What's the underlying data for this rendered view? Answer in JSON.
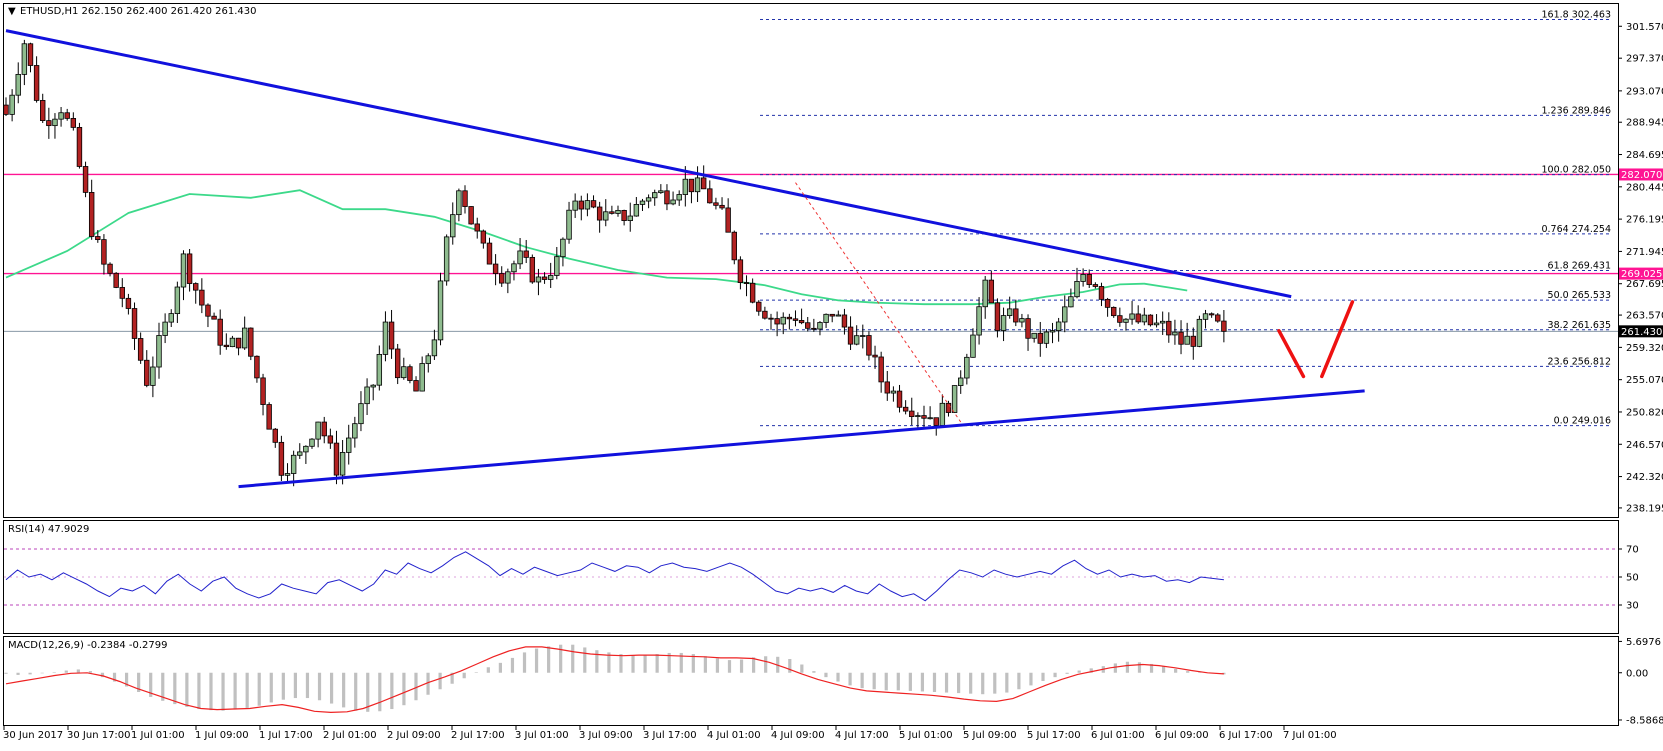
{
  "chart_data": [
    {
      "type": "candlestick",
      "symbol": "ETHUSD,H1",
      "ohlc_header": [
        "262.150",
        "262.400",
        "261.420",
        "261.430"
      ],
      "y_ticks": [
        "301.570",
        "297.370",
        "293.070",
        "288.945",
        "284.695",
        "280.445",
        "276.195",
        "271.945",
        "267.695",
        "263.570",
        "259.320",
        "255.070",
        "250.820",
        "246.570",
        "242.320",
        "238.195"
      ],
      "ylim": [
        237.0,
        304.5
      ],
      "x_tick_labels": [
        "30 Jun 2017",
        "30 Jun 17:00",
        "1 Jul 01:00",
        "1 Jul 09:00",
        "1 Jul 17:00",
        "2 Jul 01:00",
        "2 Jul 09:00",
        "2 Jul 17:00",
        "3 Jul 01:00",
        "3 Jul 09:00",
        "3 Jul 17:00",
        "4 Jul 01:00",
        "4 Jul 09:00",
        "4 Jul 17:00",
        "5 Jul 01:00",
        "5 Jul 09:00",
        "5 Jul 17:00",
        "6 Jul 01:00",
        "6 Jul 09:00",
        "6 Jul 17:00",
        "7 Jul 01:00"
      ],
      "candles_count": 200,
      "close_path": [
        [
          0,
          290.0
        ],
        [
          3,
          299.5
        ],
        [
          6,
          289.0
        ],
        [
          9,
          291.0
        ],
        [
          11,
          287.0
        ],
        [
          14,
          275.0
        ],
        [
          16,
          270.0
        ],
        [
          19,
          266.0
        ],
        [
          23,
          255.0
        ],
        [
          26,
          262.0
        ],
        [
          29,
          271.0
        ],
        [
          32,
          265.0
        ],
        [
          36,
          259.0
        ],
        [
          39,
          261.0
        ],
        [
          42,
          252.5
        ],
        [
          45,
          243.5
        ],
        [
          48,
          245.0
        ],
        [
          51,
          250.0
        ],
        [
          54,
          243.5
        ],
        [
          57,
          249.5
        ],
        [
          60,
          254.5
        ],
        [
          62,
          262.0
        ],
        [
          64,
          256.5
        ],
        [
          67,
          253.5
        ],
        [
          70,
          261.0
        ],
        [
          72,
          273.0
        ],
        [
          74,
          281.0
        ],
        [
          76,
          276.0
        ],
        [
          78,
          272.0
        ],
        [
          81,
          269.0
        ],
        [
          84,
          271.0
        ],
        [
          87,
          268.0
        ],
        [
          90,
          270.5
        ],
        [
          93,
          279.0
        ],
        [
          96,
          277.5
        ],
        [
          99,
          276.0
        ],
        [
          102,
          277.0
        ],
        [
          105,
          279.5
        ],
        [
          108,
          279.5
        ],
        [
          111,
          281.0
        ],
        [
          114,
          280.0
        ],
        [
          117,
          276.5
        ],
        [
          120,
          269.0
        ],
        [
          123,
          265.0
        ],
        [
          126,
          262.5
        ],
        [
          129,
          263.5
        ],
        [
          132,
          261.0
        ],
        [
          135,
          264.0
        ],
        [
          138,
          261.0
        ],
        [
          141,
          259.0
        ],
        [
          143,
          255.0
        ],
        [
          146,
          252.5
        ],
        [
          149,
          251.0
        ],
        [
          152,
          250.0
        ],
        [
          155,
          253.0
        ],
        [
          158,
          262.0
        ],
        [
          160,
          267.0
        ],
        [
          162,
          262.5
        ],
        [
          165,
          263.5
        ],
        [
          168,
          260.0
        ],
        [
          171,
          261.0
        ],
        [
          174,
          265.5
        ],
        [
          176,
          269.0
        ],
        [
          178,
          268.0
        ],
        [
          180,
          265.0
        ],
        [
          183,
          263.0
        ],
        [
          186,
          262.5
        ],
        [
          189,
          262.0
        ],
        [
          192,
          260.0
        ],
        [
          194,
          260.5
        ],
        [
          196,
          263.0
        ],
        [
          198,
          262.0
        ],
        [
          199,
          261.43
        ]
      ],
      "series": [
        {
          "name": "MA",
          "points": [
            [
              0,
              268.5
            ],
            [
              10,
              272.0
            ],
            [
              20,
              277.0
            ],
            [
              30,
              279.5
            ],
            [
              40,
              279.0
            ],
            [
              48,
              280.0
            ],
            [
              55,
              277.5
            ],
            [
              62,
              277.5
            ],
            [
              70,
              276.5
            ],
            [
              78,
              274.5
            ],
            [
              85,
              272.5
            ],
            [
              92,
              271.0
            ],
            [
              100,
              269.5
            ],
            [
              108,
              268.5
            ],
            [
              116,
              268.3
            ],
            [
              124,
              267.5
            ],
            [
              130,
              266.3
            ],
            [
              136,
              265.5
            ],
            [
              142,
              265.2
            ],
            [
              150,
              265.0
            ],
            [
              158,
              265.0
            ],
            [
              164,
              265.2
            ],
            [
              170,
              266.0
            ],
            [
              176,
              266.6
            ],
            [
              182,
              267.6
            ],
            [
              186,
              267.7
            ],
            [
              190,
              267.2
            ],
            [
              193,
              266.8
            ]
          ]
        }
      ],
      "horizontal_levels": [
        {
          "value": 282.07,
          "label": "282.070",
          "color": "#ff1493"
        },
        {
          "value": 269.025,
          "label": "269.025",
          "color": "#ff1493"
        }
      ],
      "current_price": {
        "value": 261.43,
        "label": "261.430"
      },
      "fib_levels": [
        {
          "value": 302.463,
          "ratio": "161.8",
          "price": "302.463"
        },
        {
          "value": 289.846,
          "ratio": "1.236",
          "price": "289.846"
        },
        {
          "value": 282.05,
          "ratio": "100.0",
          "price": "282.050"
        },
        {
          "value": 274.254,
          "ratio": "0.764",
          "price": "274.254"
        },
        {
          "value": 269.431,
          "ratio": "61.8",
          "price": "269.431"
        },
        {
          "value": 265.533,
          "ratio": "50.0",
          "price": "265.533"
        },
        {
          "value": 261.635,
          "ratio": "38.2",
          "price": "261.635"
        },
        {
          "value": 256.812,
          "ratio": "23.6",
          "price": "256.812"
        },
        {
          "value": 249.016,
          "ratio": "0.0",
          "price": "249.016"
        }
      ],
      "trendlines": [
        {
          "from": [
            0,
            301.0
          ],
          "to": [
            210,
            266.0
          ],
          "color": "#1111dd"
        },
        {
          "from": [
            38,
            241.0
          ],
          "to": [
            222,
            253.6
          ],
          "color": "#1111dd"
        }
      ],
      "annotations": [
        {
          "type": "dashed-line",
          "from": [
            129,
            281.0
          ],
          "to": [
            156,
            249.5
          ],
          "color": "#ee3333"
        },
        {
          "type": "stroke",
          "from": [
            208,
            261.5
          ],
          "to": [
            212,
            255.5
          ],
          "color": "#ee1111"
        },
        {
          "type": "stroke",
          "from": [
            215,
            255.5
          ],
          "to": [
            220,
            265.3
          ],
          "color": "#ee1111"
        }
      ]
    },
    {
      "type": "line",
      "title": "RSI(14) 47.9029",
      "ylim": [
        10,
        90
      ],
      "y_ticks": [
        "70",
        "50",
        "30"
      ],
      "levels": [
        70,
        30
      ],
      "values": [
        48,
        55,
        50,
        52,
        48,
        53,
        49,
        45,
        40,
        36,
        42,
        40,
        44,
        38,
        47,
        52,
        45,
        40,
        47,
        50,
        42,
        38,
        35,
        38,
        45,
        42,
        40,
        38,
        46,
        48,
        44,
        40,
        45,
        55,
        52,
        60,
        56,
        53,
        58,
        64,
        68,
        63,
        58,
        51,
        56,
        52,
        57,
        54,
        51,
        53,
        55,
        60,
        57,
        54,
        58,
        57,
        53,
        58,
        60,
        57,
        56,
        54,
        57,
        60,
        57,
        52,
        46,
        40,
        38,
        42,
        40,
        42,
        39,
        44,
        40,
        38,
        45,
        40,
        36,
        38,
        33,
        40,
        48,
        55,
        53,
        50,
        55,
        52,
        50,
        52,
        54,
        52,
        58,
        62,
        56,
        52,
        55,
        50,
        52,
        50,
        51,
        47,
        48,
        46,
        50,
        49,
        48
      ]
    },
    {
      "type": "bar",
      "title": "MACD(12,26,9) -0.2384 -0.2799",
      "ylim": [
        -9.5,
        6.5
      ],
      "y_ticks": [
        "5.6976",
        "0.00",
        "-8.5868"
      ],
      "histogram": [
        -0.2,
        -0.4,
        -0.3,
        -0.1,
        0.1,
        0.4,
        0.6,
        0.3,
        -0.8,
        -1.6,
        -2.5,
        -3.5,
        -4.4,
        -5.1,
        -5.7,
        -6.2,
        -6.6,
        -6.8,
        -6.9,
        -6.7,
        -6.4,
        -6.0,
        -5.4,
        -4.9,
        -4.6,
        -4.6,
        -5.0,
        -5.6,
        -6.3,
        -6.9,
        -7.1,
        -7.0,
        -6.6,
        -5.9,
        -5.0,
        -4.0,
        -3.0,
        -2.0,
        -1.0,
        0.1,
        1.0,
        1.8,
        2.7,
        3.7,
        4.4,
        4.8,
        5.1,
        5.1,
        4.6,
        4.1,
        3.7,
        3.4,
        3.2,
        3.2,
        3.4,
        3.6,
        3.6,
        3.4,
        3.0,
        2.6,
        2.3,
        2.4,
        2.8,
        3.0,
        2.9,
        2.5,
        1.5,
        0.3,
        -0.8,
        -1.6,
        -2.3,
        -2.8,
        -3.0,
        -3.2,
        -3.2,
        -3.3,
        -3.4,
        -3.5,
        -3.6,
        -3.7,
        -3.8,
        -3.9,
        -3.8,
        -3.6,
        -3.0,
        -2.3,
        -1.5,
        -0.8,
        -0.2,
        0.4,
        0.8,
        1.2,
        1.7,
        2.0,
        1.9,
        1.6,
        1.2,
        0.7,
        0.3,
        0.1,
        -0.1,
        -0.3
      ],
      "signal": [
        -2.0,
        -1.5,
        -1.0,
        -0.5,
        -0.1,
        0.0,
        -0.6,
        -1.6,
        -2.8,
        -3.8,
        -4.8,
        -5.8,
        -6.5,
        -6.7,
        -6.6,
        -6.5,
        -6.1,
        -5.8,
        -6.3,
        -7.0,
        -7.2,
        -7.1,
        -6.5,
        -5.4,
        -4.2,
        -3.0,
        -1.8,
        -0.8,
        0.3,
        1.6,
        2.9,
        4.0,
        4.7,
        4.7,
        4.3,
        3.8,
        3.4,
        3.2,
        3.1,
        3.2,
        3.2,
        3.1,
        3.0,
        2.9,
        2.7,
        2.7,
        2.6,
        1.9,
        0.9,
        -0.2,
        -1.2,
        -2.0,
        -2.8,
        -3.3,
        -3.5,
        -3.7,
        -3.9,
        -4.1,
        -4.4,
        -4.8,
        -5.1,
        -5.2,
        -4.7,
        -3.5,
        -2.3,
        -1.2,
        -0.3,
        0.3,
        0.9,
        1.3,
        1.5,
        1.3,
        0.9,
        0.4,
        0.0,
        -0.2
      ]
    }
  ]
}
